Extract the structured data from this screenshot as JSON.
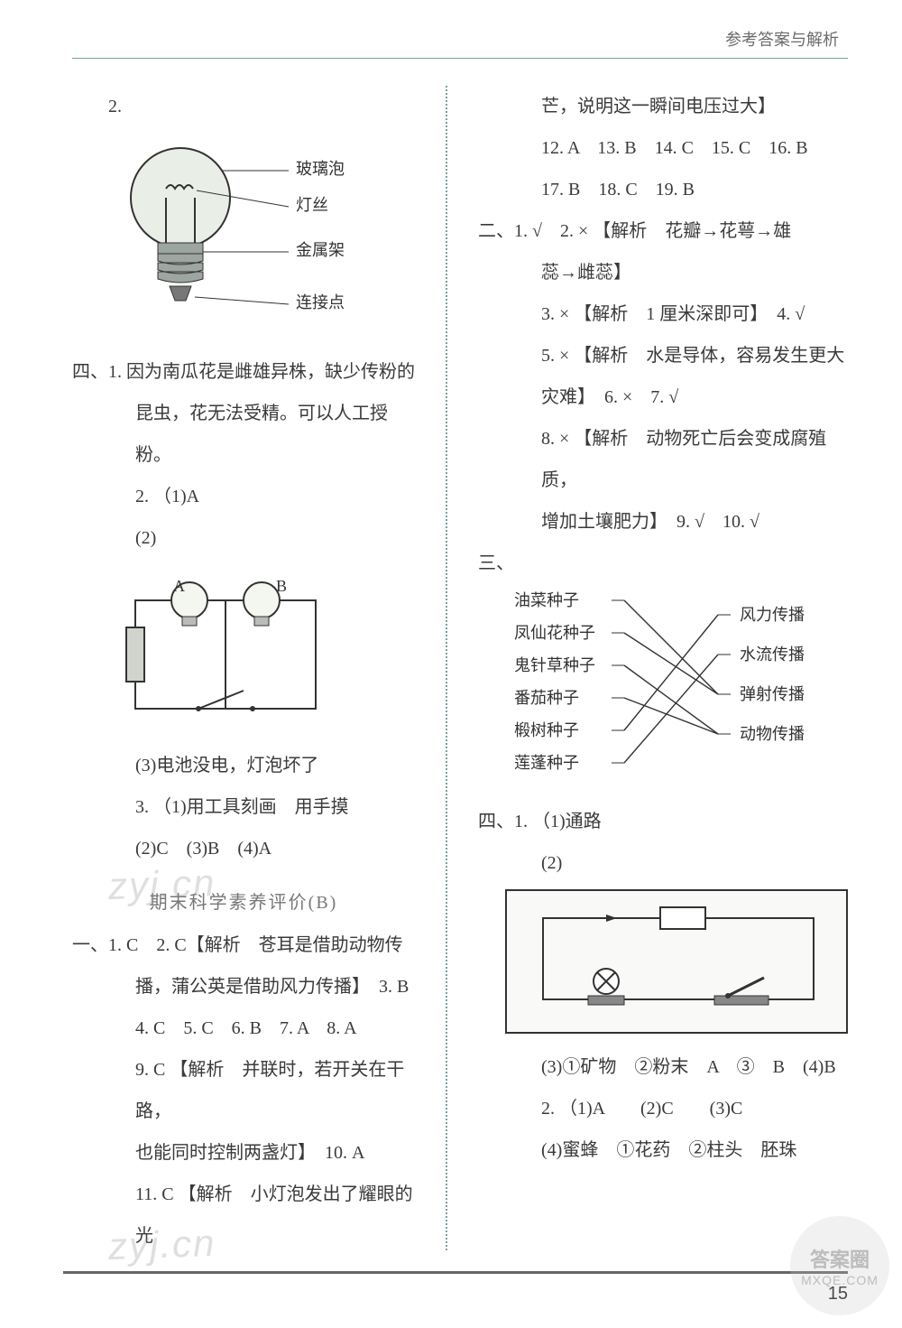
{
  "header": {
    "title": "参考答案与解析"
  },
  "pagenum": "15",
  "watermarks": {
    "wm1": "zyj.cn",
    "wm2": "zyj.cn"
  },
  "logo": {
    "top": "答案圈",
    "bottom": "MXQE.COM"
  },
  "left": {
    "q2": "2.",
    "bulb": {
      "labels": {
        "glass": "玻璃泡",
        "filament": "灯丝",
        "frame": "金属架",
        "contact": "连接点"
      },
      "colors": {
        "glass_fill": "#e9efe6",
        "glass_stroke": "#333333",
        "base_fill": "#9da6a1"
      }
    },
    "sec4": "四、",
    "s4_q1_a": "1. 因为南瓜花是雌雄异株，缺少传粉的",
    "s4_q1_b": "昆虫，花无法受精。可以人工授粉。",
    "s4_q2": "2. （1)A",
    "s4_q2_2": "(2)",
    "circuit": {
      "labels": {
        "A": "A",
        "B": "B"
      },
      "colors": {
        "bulb_fill": "#f4f6f0",
        "wire": "#333333",
        "battery_fill": "#d0d4cc"
      }
    },
    "s4_q2_3": "(3)电池没电，灯泡坏了",
    "s4_q3_1": "3. （1)用工具刻画　用手摸",
    "s4_q3_ans": "(2)C　(3)B　(4)A",
    "exam_title": "期末科学素养评价(B)",
    "sec1": "一、",
    "p1_l1": "1. C　2. C【解析　苍耳是借助动物传",
    "p1_l2": "播，蒲公英是借助风力传播】　3. B",
    "p1_l3": "4. C　5. C　6. B　7. A　8. A",
    "p1_l4a": "9. C 【解析　并联时，若开关在干路，",
    "p1_l4b": "也能同时控制两盏灯】　10. A",
    "p1_l5": "11. C 【解析　小灯泡发出了耀眼的光"
  },
  "right": {
    "p1_l6": "芒，说明这一瞬间电压过大】",
    "p1_l7": "12. A　13. B　14. C　15. C　16. B",
    "p1_l8": "17. B　18. C　19. B",
    "sec2": "二、",
    "p2_l1a": "1. √　2. × 【解析　花瓣→花萼→雄",
    "p2_l1b": "蕊→雌蕊】",
    "p2_l2": "3. × 【解析　1 厘米深即可】　4. √",
    "p2_l3a": "5. × 【解析　水是导体，容易发生更大",
    "p2_l3b": "灾难】　6. ×　7. √",
    "p2_l4a": "8. × 【解析　动物死亡后会变成腐殖质，",
    "p2_l4b": "增加土壤肥力】　9. √　10. √",
    "sec3": "三、",
    "matching": {
      "left": [
        "油菜种子",
        "凤仙花种子",
        "鬼针草种子",
        "番茄种子",
        "椴树种子",
        "莲蓬种子"
      ],
      "right": [
        "风力传播",
        "水流传播",
        "弹射传播",
        "动物传播"
      ],
      "edges": [
        [
          0,
          2
        ],
        [
          1,
          2
        ],
        [
          2,
          3
        ],
        [
          3,
          3
        ],
        [
          4,
          0
        ],
        [
          5,
          1
        ]
      ],
      "colors": {
        "text": "#333333",
        "line": "#333333"
      }
    },
    "sec4r": "四、",
    "r4_q1_1": "1. （1)通路",
    "r4_q1_2": "(2)",
    "circuit2_colors": {
      "border": "#333333",
      "bg": "#f9f9f8",
      "wire": "#333333"
    },
    "r4_q1_3": "(3)①矿物　②粉末　A　③　B　(4)B",
    "r4_q2_1": "2. （1)A　　(2)C　　(3)C",
    "r4_q2_4": "(4)蜜蜂　①花药　②柱头　胚珠"
  }
}
